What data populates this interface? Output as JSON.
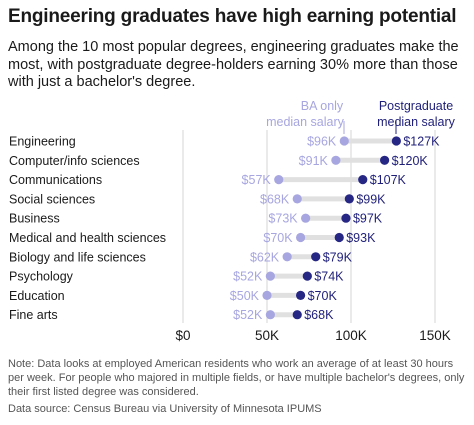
{
  "title": "Engineering graduates have high earning potential",
  "subtitle": "Among the 10 most popular degrees, engineering graduates make the most, with postgraduate degree-holders earning 30% more than those with just a bachelor's degree.",
  "note": "Note: Data looks at employed American residents who work an average of at least 30 hours per week. For people who majored in multiple fields, or have multiple bachelor's degrees, only their first listed degree was considered.",
  "source": "Data source: Census Bureau via University of Minnesota IPUMS",
  "colors": {
    "ba": "#a7a6e0",
    "postgrad": "#262685",
    "connector": "#e0e0e0",
    "grid": "#d6d6d6"
  },
  "chart_data": {
    "type": "dumbbell",
    "categories": [
      "Engineering",
      "Computer/info sciences",
      "Communications",
      "Social sciences",
      "Business",
      "Medical and health sciences",
      "Biology and life sciences",
      "Psychology",
      "Education",
      "Fine arts"
    ],
    "series": [
      {
        "name": "BA only median salary",
        "values": [
          96,
          91,
          57,
          68,
          73,
          70,
          62,
          52,
          50,
          52
        ],
        "labels": [
          "$96K",
          "$91K",
          "$57K",
          "$68K",
          "$73K",
          "$70K",
          "$62K",
          "$52K",
          "$50K",
          "$52K"
        ]
      },
      {
        "name": "Postgraduate median salary",
        "values": [
          127,
          120,
          107,
          99,
          97,
          93,
          79,
          74,
          70,
          68
        ],
        "labels": [
          "$127K",
          "$120K",
          "$107K",
          "$99K",
          "$97K",
          "$93K",
          "$79K",
          "$74K",
          "$70K",
          "$68K"
        ]
      }
    ],
    "xlim": [
      0,
      150
    ],
    "xticks": [
      0,
      50,
      100,
      150
    ],
    "xtick_labels": [
      "$0",
      "50K",
      "100K",
      "150K"
    ],
    "legend": {
      "ba_line1": "BA only",
      "ba_line2": "median salary",
      "pg_line1": "Postgraduate",
      "pg_line2": "median salary"
    },
    "grid": true
  }
}
